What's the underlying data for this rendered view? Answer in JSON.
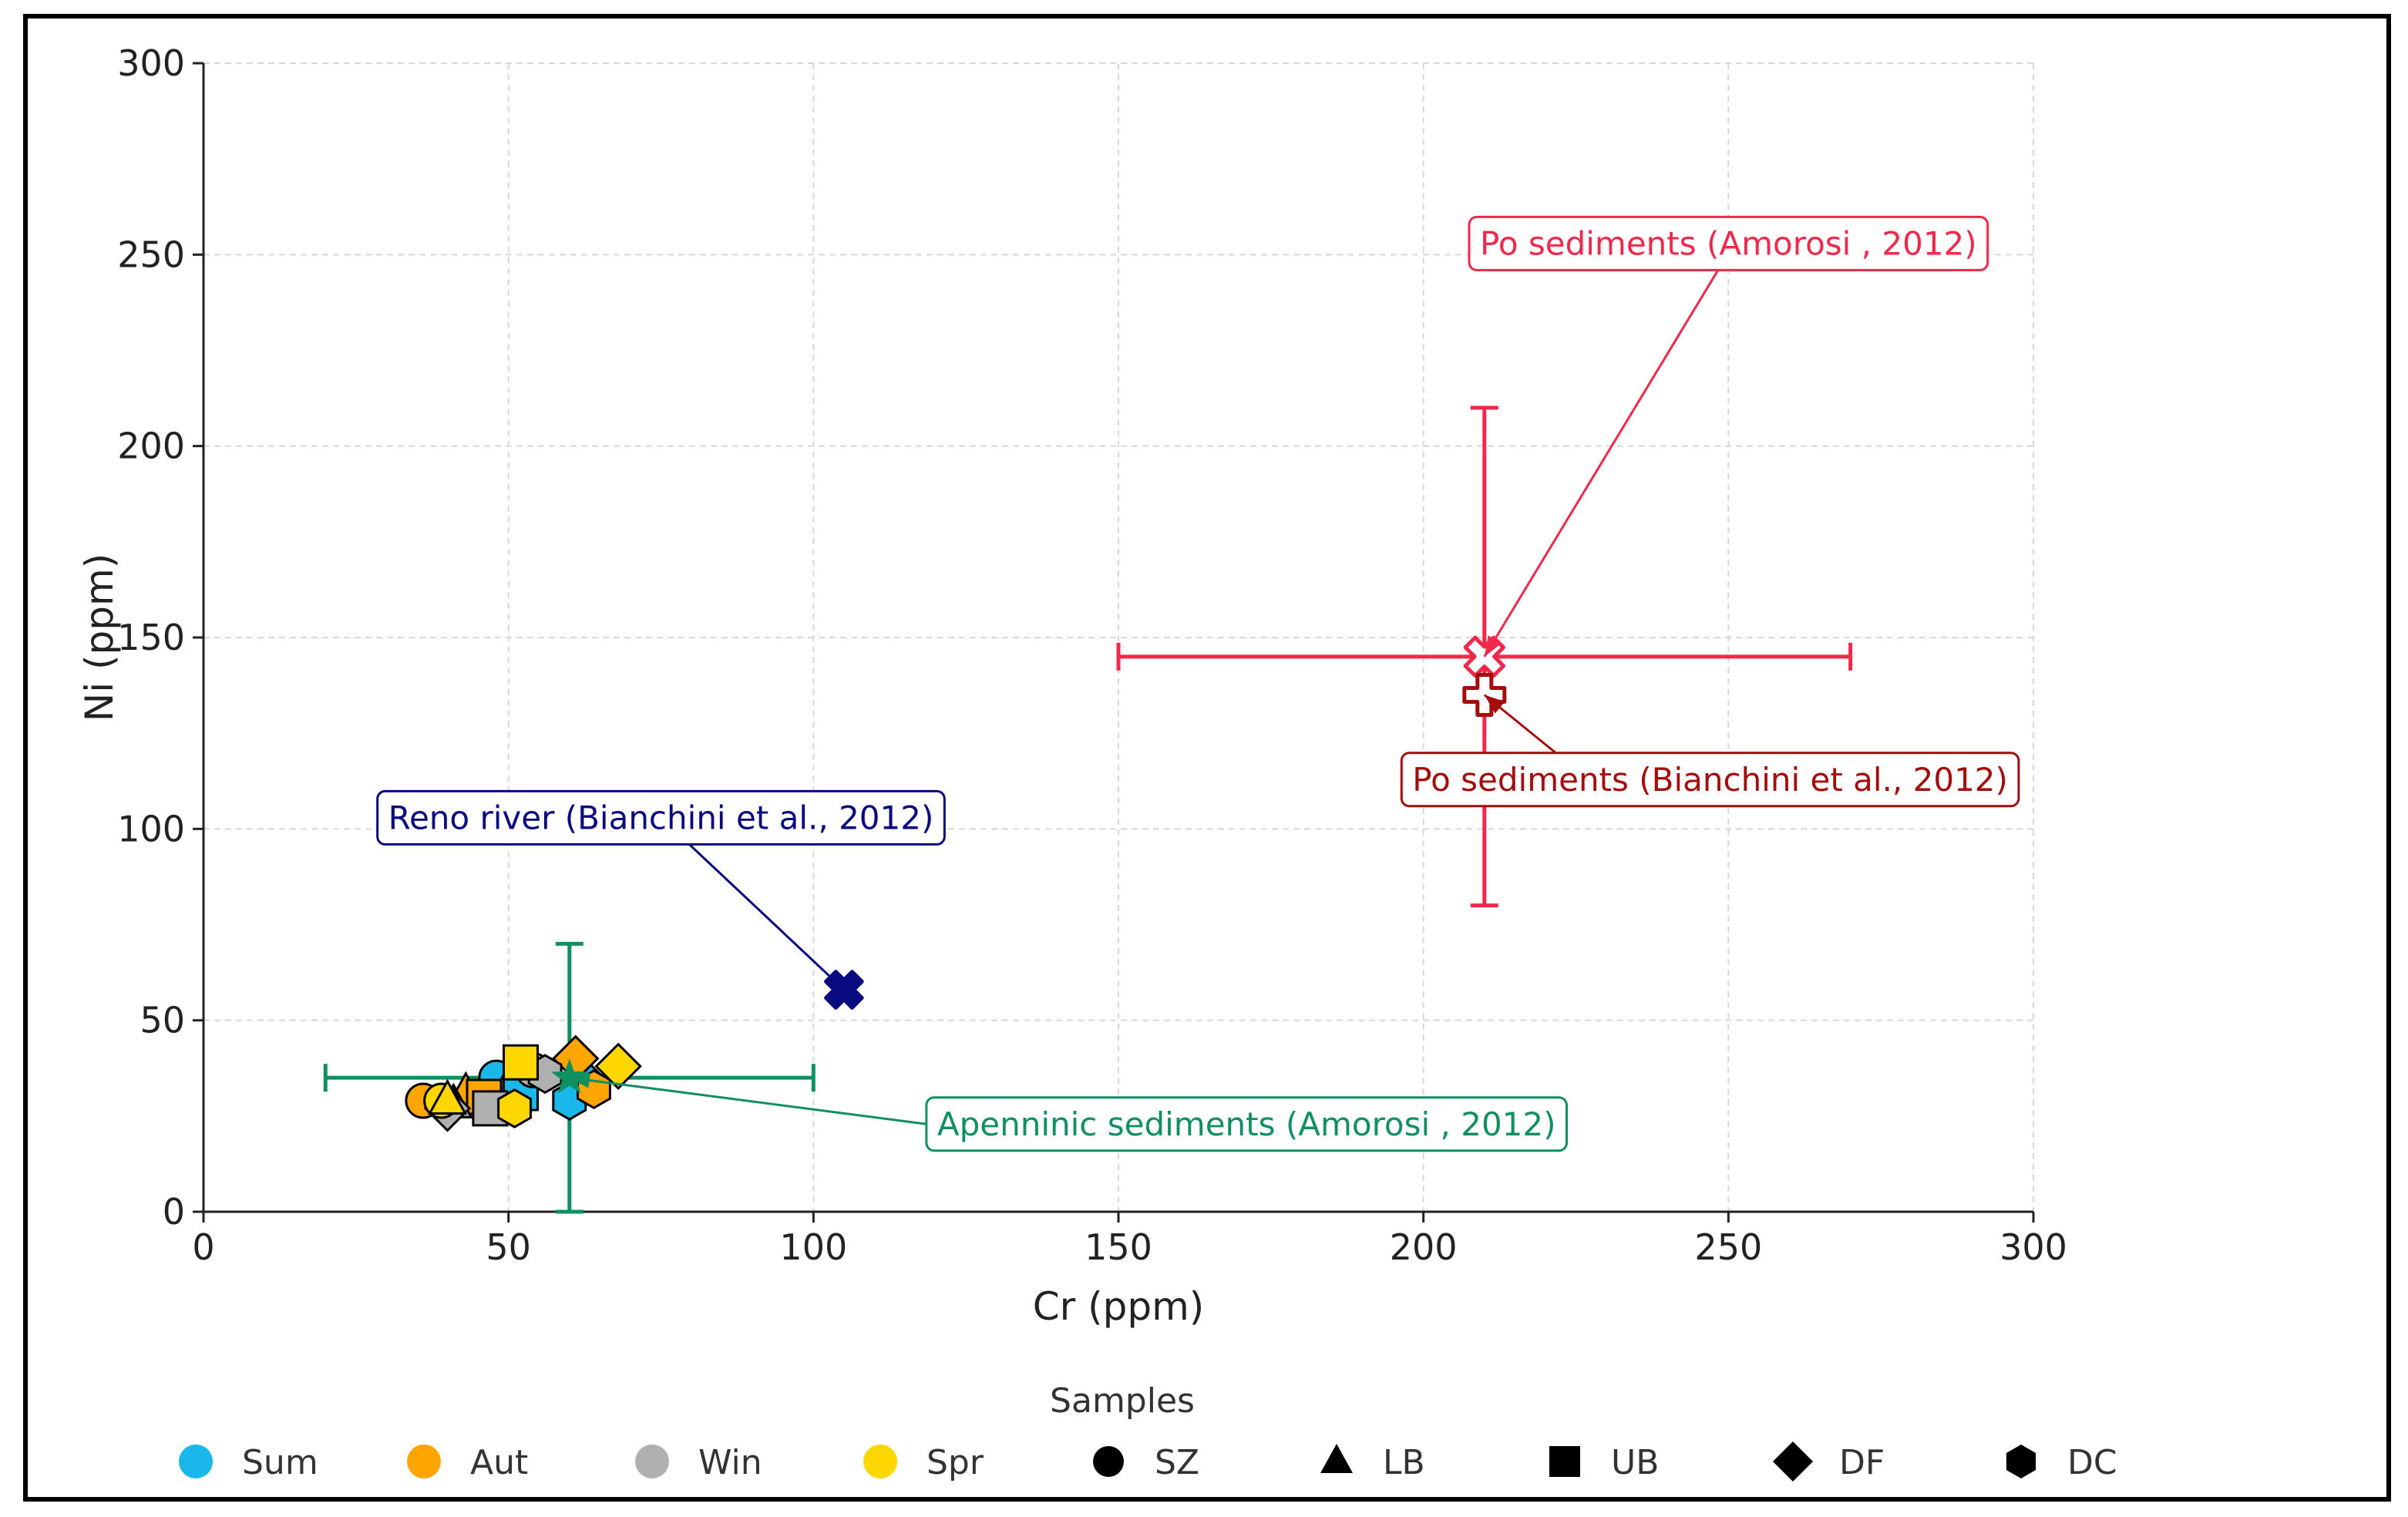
{
  "chart_data": {
    "type": "scatter",
    "xlabel": "Cr (ppm)",
    "ylabel": "Ni (ppm)",
    "xlim": [
      0,
      300
    ],
    "ylim": [
      0,
      300
    ],
    "xticks": [
      0,
      50,
      100,
      150,
      200,
      250,
      300
    ],
    "yticks": [
      0,
      50,
      100,
      150,
      200,
      250,
      300
    ],
    "grid": true,
    "legend": {
      "title": "Samples",
      "placement": "bottom",
      "items": [
        {
          "label": "Sum",
          "kind": "color",
          "color": "#1ab7ea"
        },
        {
          "label": "Aut",
          "kind": "color",
          "color": "#ffa500"
        },
        {
          "label": "Win",
          "kind": "color",
          "color": "#b0b0b0"
        },
        {
          "label": "Spr",
          "kind": "color",
          "color": "#ffd700"
        },
        {
          "label": "SZ",
          "kind": "shape",
          "shape": "circle"
        },
        {
          "label": "LB",
          "kind": "shape",
          "shape": "triangle"
        },
        {
          "label": "UB",
          "kind": "shape",
          "shape": "square"
        },
        {
          "label": "DF",
          "kind": "shape",
          "shape": "diamond"
        },
        {
          "label": "DC",
          "kind": "shape",
          "shape": "hexagon"
        }
      ]
    },
    "samples": [
      {
        "season": "Sum",
        "site": "SZ",
        "x": 48,
        "y": 35
      },
      {
        "season": "Sum",
        "site": "LB",
        "x": 50,
        "y": 33
      },
      {
        "season": "Sum",
        "site": "UB",
        "x": 52,
        "y": 31
      },
      {
        "season": "Sum",
        "site": "DF",
        "x": 62,
        "y": 35
      },
      {
        "season": "Sum",
        "site": "DC",
        "x": 60,
        "y": 29
      },
      {
        "season": "Aut",
        "site": "SZ",
        "x": 36,
        "y": 29
      },
      {
        "season": "Aut",
        "site": "LB",
        "x": 43,
        "y": 31
      },
      {
        "season": "Aut",
        "site": "UB",
        "x": 46,
        "y": 30
      },
      {
        "season": "Aut",
        "site": "DF",
        "x": 61,
        "y": 40
      },
      {
        "season": "Aut",
        "site": "DC",
        "x": 64,
        "y": 32
      },
      {
        "season": "Win",
        "site": "SZ",
        "x": 54,
        "y": 37
      },
      {
        "season": "Win",
        "site": "LB",
        "x": 41,
        "y": 28
      },
      {
        "season": "Win",
        "site": "UB",
        "x": 47,
        "y": 27
      },
      {
        "season": "Win",
        "site": "DF",
        "x": 40,
        "y": 27
      },
      {
        "season": "Win",
        "site": "DC",
        "x": 56,
        "y": 36
      },
      {
        "season": "Spr",
        "site": "SZ",
        "x": 39,
        "y": 29
      },
      {
        "season": "Spr",
        "site": "LB",
        "x": 40,
        "y": 29
      },
      {
        "season": "Spr",
        "site": "UB",
        "x": 52,
        "y": 39
      },
      {
        "season": "Spr",
        "site": "DF",
        "x": 68,
        "y": 38
      },
      {
        "season": "Spr",
        "site": "DC",
        "x": 51,
        "y": 27
      }
    ],
    "references": [
      {
        "name": "Po sediments (Amorosi , 2012)",
        "x": 210,
        "y": 145,
        "xerr": [
          150,
          270
        ],
        "yerr": [
          80,
          210
        ],
        "color": "#f0284a",
        "marker": "x-open",
        "label_at": [
          250,
          253
        ]
      },
      {
        "name": "Po sediments (Bianchini et al., 2012)",
        "x": 210,
        "y": 135,
        "color": "#a50d0d",
        "marker": "plus-open",
        "label_at": [
          247,
          113
        ]
      },
      {
        "name": "Reno river (Bianchini et al., 2012)",
        "x": 105,
        "y": 58,
        "color": "#0a0a80",
        "marker": "x-filled",
        "label_at": [
          75,
          103
        ]
      },
      {
        "name": "Apenninic sediments (Amorosi , 2012)",
        "x": 60,
        "y": 35,
        "xerr": [
          20,
          100
        ],
        "yerr": [
          0,
          70
        ],
        "color": "#109060",
        "marker": "star",
        "label_at": [
          171,
          23
        ]
      }
    ]
  }
}
